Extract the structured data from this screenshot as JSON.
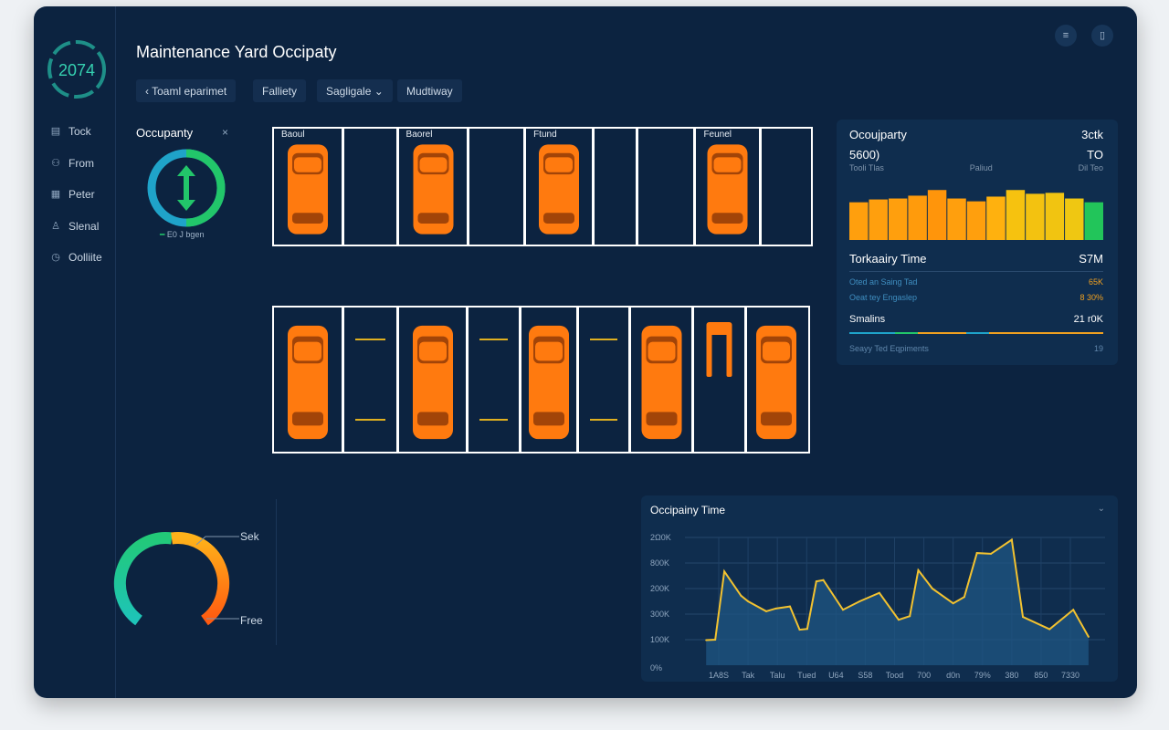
{
  "app": {
    "title": "Maintenance Yard Occipaty",
    "logo_value": "2074"
  },
  "sidebar": {
    "items": [
      {
        "label": "Tock",
        "icon": "calendar-icon"
      },
      {
        "label": "From",
        "icon": "users-icon"
      },
      {
        "label": "Peter",
        "icon": "grid-icon"
      },
      {
        "label": "Slenal",
        "icon": "bell-icon"
      },
      {
        "label": "Oolliite",
        "icon": "clock-icon"
      }
    ]
  },
  "toolbar": {
    "back_label": "Toaml eparimet",
    "back_icon": "chevron-left-icon",
    "chips": [
      "Falliety",
      "Sagligale",
      "Mudtiway"
    ],
    "dropdown_icon": "chevron-down-icon"
  },
  "header_icons": [
    "menu-icon",
    "document-icon"
  ],
  "occupancy_widget": {
    "title": "Occupanty",
    "close": "×",
    "legend": "E0 J bgen",
    "colors": {
      "teal": "#1fa3c9",
      "green": "#22c66a"
    }
  },
  "yard": {
    "top_row": [
      {
        "occupied": true,
        "label": "Baoul"
      },
      {
        "occupied": false
      },
      {
        "occupied": true,
        "label": "Baorel"
      },
      {
        "occupied": false
      },
      {
        "occupied": true,
        "label": "Ftund"
      },
      {
        "occupied": false
      },
      {
        "occupied": false
      },
      {
        "occupied": true,
        "label": "Feunel"
      },
      {
        "occupied": false
      }
    ],
    "bottom_row": [
      {
        "occupied": true
      },
      {
        "occupied": false
      },
      {
        "occupied": true
      },
      {
        "occupied": false
      },
      {
        "occupied": true
      },
      {
        "occupied": false
      },
      {
        "occupied": true
      },
      {
        "occupied": true,
        "vehicle": "forklift"
      },
      {
        "occupied": true
      }
    ],
    "car_color": "#ff7a0f"
  },
  "gauge": {
    "label_top": "Sek",
    "label_bottom": "Free",
    "colors": [
      "#1ec4b8",
      "#22c978",
      "#ffb21a",
      "#ff5a10"
    ]
  },
  "summary": {
    "title": "Ocoujparty",
    "title_value": "3ctk",
    "big_left": "5600)",
    "big_right": "TO",
    "sub": [
      "Tooli Tlas",
      "Paliud",
      "Dil Teo"
    ],
    "bars": [
      40,
      43,
      44,
      47,
      53,
      44,
      41,
      46,
      53,
      49,
      50,
      44,
      40
    ],
    "bar_colors": [
      "#ff9f0d",
      "#ff9f0d",
      "#ff9f0d",
      "#ff9b0c",
      "#ff950b",
      "#ff9f0d",
      "#ff9f0d",
      "#ffb10e",
      "#f6c20f",
      "#f3c210",
      "#f1c411",
      "#efc712",
      "#22c55a"
    ],
    "section_title": "Torkaairy Time",
    "section_value": "S7M",
    "rows": [
      {
        "label": "Oted an Saing Tad",
        "value": "65K"
      },
      {
        "label": "Oeat tey Engaslep",
        "value": "8 30%"
      }
    ],
    "total_label": "Smalins",
    "total_value": "21 r0K",
    "footer_label": "Seayy Ted Eqpiments",
    "footer_value": "19"
  },
  "chart_data": {
    "type": "area",
    "title": "Occipainy Time",
    "y_tick_labels": [
      "0%",
      "100K",
      "300K",
      "200K",
      "800K",
      "2Ω0K"
    ],
    "x_tick_labels": [
      "1A8S",
      "Tak",
      "Talu",
      "Tued",
      "U64",
      "S58",
      "Tood",
      "700",
      "d0n",
      "79%",
      "380",
      "850",
      "7330"
    ],
    "ylim": [
      0,
      5
    ],
    "grid": true,
    "line_color": "#f2c230",
    "points": [
      [
        -0.43,
        0.98
      ],
      [
        -0.12,
        1.0
      ],
      [
        0.19,
        3.67
      ],
      [
        0.76,
        2.72
      ],
      [
        1.0,
        2.5
      ],
      [
        1.62,
        2.11
      ],
      [
        1.95,
        2.22
      ],
      [
        2.43,
        2.3
      ],
      [
        2.76,
        1.39
      ],
      [
        3.02,
        1.42
      ],
      [
        3.33,
        3.28
      ],
      [
        3.57,
        3.33
      ],
      [
        4.24,
        2.17
      ],
      [
        4.81,
        2.5
      ],
      [
        5.48,
        2.83
      ],
      [
        6.14,
        1.78
      ],
      [
        6.52,
        1.92
      ],
      [
        6.81,
        3.72
      ],
      [
        7.29,
        3.0
      ],
      [
        8.0,
        2.42
      ],
      [
        8.38,
        2.67
      ],
      [
        8.81,
        4.39
      ],
      [
        9.29,
        4.36
      ],
      [
        10.0,
        4.91
      ],
      [
        10.38,
        1.89
      ],
      [
        11.29,
        1.41
      ],
      [
        12.1,
        2.17
      ],
      [
        12.62,
        1.11
      ]
    ]
  }
}
